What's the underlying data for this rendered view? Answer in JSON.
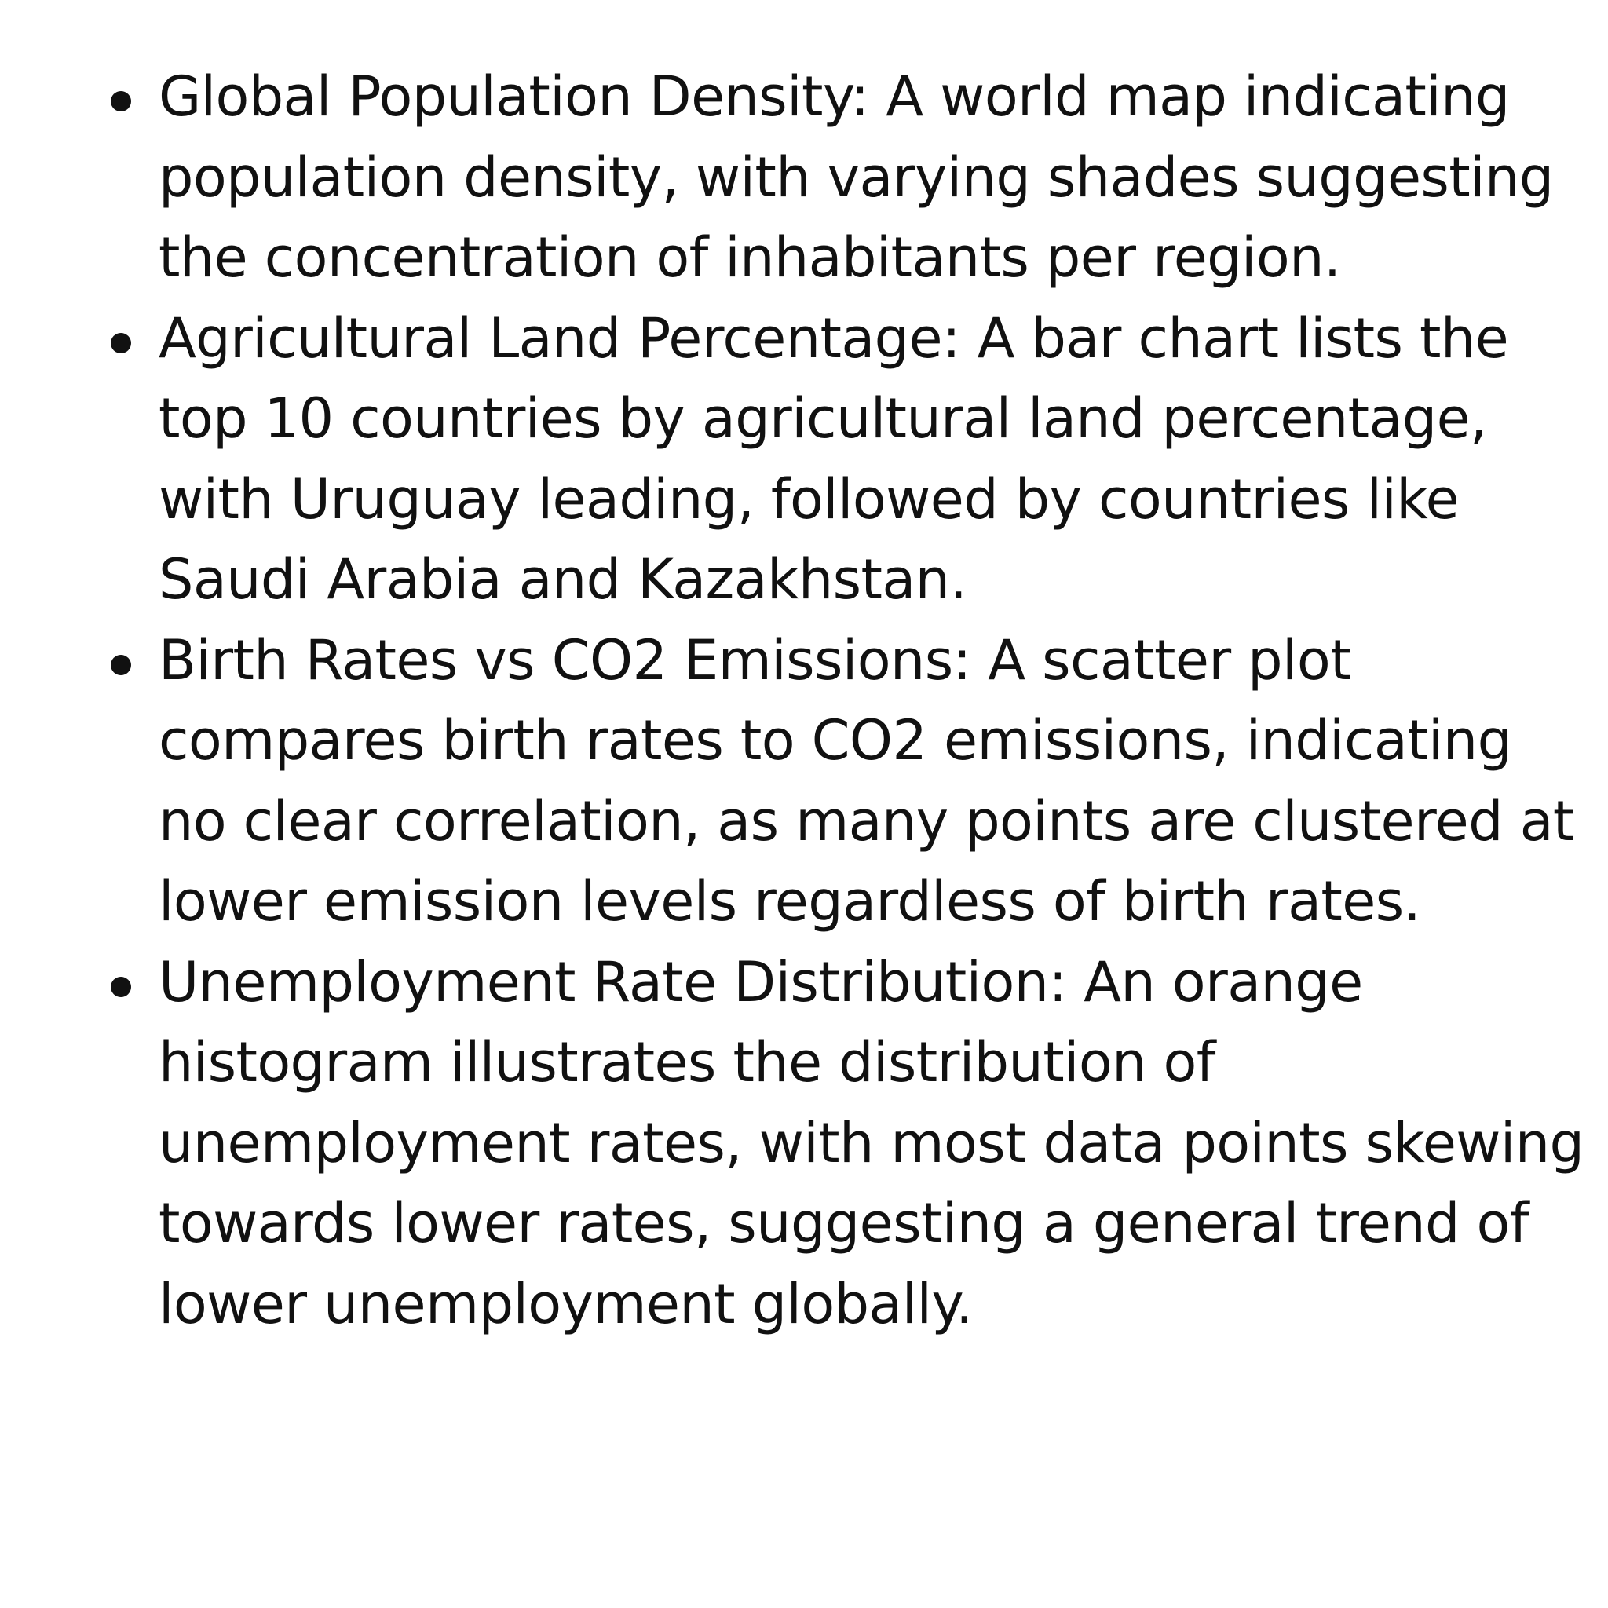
{
  "bullets": [
    {
      "lines": [
        "Global Population Density: A world map indicating",
        "population density, with varying shades suggesting",
        "the concentration of inhabitants per region."
      ]
    },
    {
      "lines": [
        "Agricultural Land Percentage: A bar chart lists the",
        "top 10 countries by agricultural land percentage,",
        "with Uruguay leading, followed by countries like",
        "Saudi Arabia and Kazakhstan."
      ]
    },
    {
      "lines": [
        "Birth Rates vs CO2 Emissions: A scatter plot",
        "compares birth rates to CO2 emissions, indicating",
        "no clear correlation, as many points are clustered at",
        "lower emission levels regardless of birth rates."
      ]
    },
    {
      "lines": [
        "Unemployment Rate Distribution: An orange",
        "histogram illustrates the distribution of",
        "unemployment rates, with most data points skewing",
        "towards lower rates, suggesting a general trend of",
        "lower unemployment globally."
      ]
    }
  ]
}
